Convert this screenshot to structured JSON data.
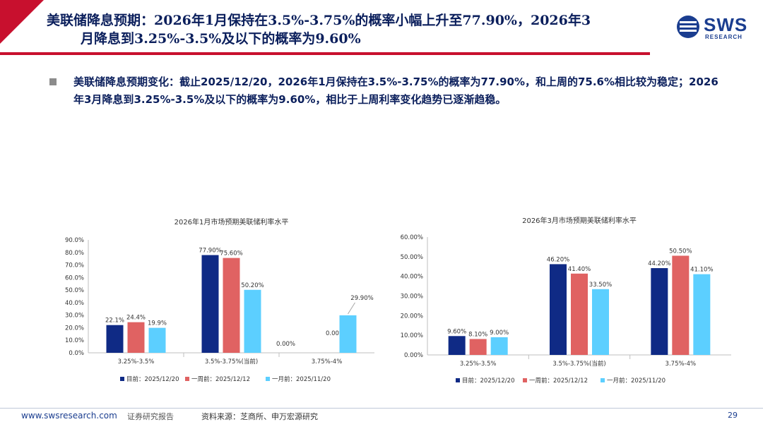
{
  "header": {
    "title_line1": "美联储降息预期：2026年1月保持在3.5%-3.75%的概率小幅上升至77.90%，2026年3",
    "title_line2": "月降息到3.25%-3.5%及以下的概率为9.60%"
  },
  "logo": {
    "name": "SWS",
    "sub": "RESEARCH"
  },
  "bullet": {
    "text": "美联储降息预期变化：截止2025/12/20，2026年1月保持在3.5%-3.75%的概率为77.90%，和上周的75.6%相比较为稳定；2026年3月降息到3.25%-3.5%及以下的概率为9.60%，相比于上周利率变化趋势已逐渐趋稳。"
  },
  "colors": {
    "current": "#0f2a85",
    "week": "#e06262",
    "month": "#5ccfff",
    "brand": "#1a3d8f",
    "accent": "#c8102e"
  },
  "chart_data": [
    {
      "type": "bar",
      "title": "2026年1月市场预期美联储利率水平",
      "categories": [
        "3.25%-3.5%",
        "3.5%-3.75%(当前)",
        "3.75%-4%"
      ],
      "series": [
        {
          "name": "目前：2025/12/20",
          "values": [
            22.1,
            77.9,
            0.0
          ],
          "labels": [
            "22.1%",
            "77.90%",
            "0.00%"
          ]
        },
        {
          "name": "一周前：2025/12/12",
          "values": [
            24.4,
            75.6,
            0.0
          ],
          "labels": [
            "24.4%",
            "75.60%",
            "0.00%"
          ]
        },
        {
          "name": "一月前：2025/11/20",
          "values": [
            19.9,
            50.2,
            29.9
          ],
          "labels": [
            "19.9%",
            "50.20%",
            "29.90%"
          ]
        }
      ],
      "ylim": [
        0,
        90
      ],
      "yticks": [
        "0.0%",
        "10.0%",
        "20.0%",
        "30.0%",
        "40.0%",
        "50.0%",
        "60.0%",
        "70.0%",
        "80.0%",
        "90.0%"
      ],
      "legend": "bottom"
    },
    {
      "type": "bar",
      "title": "2026年3月市场预期美联储利率水平",
      "categories": [
        "3.25%-3.5%",
        "3.5%-3.75%(当前)",
        "3.75%-4%"
      ],
      "series": [
        {
          "name": "目前：2025/12/20",
          "values": [
            9.6,
            46.2,
            44.2
          ],
          "labels": [
            "9.60%",
            "46.20%",
            "44.20%"
          ]
        },
        {
          "name": "一周前：2025/12/12",
          "values": [
            8.1,
            41.4,
            50.5
          ],
          "labels": [
            "8.10%",
            "41.40%",
            "50.50%"
          ]
        },
        {
          "name": "一月前：2025/11/20",
          "values": [
            9.0,
            33.5,
            41.1
          ],
          "labels": [
            "9.00%",
            "33.50%",
            "41.10%"
          ]
        }
      ],
      "ylim": [
        0,
        60
      ],
      "yticks": [
        "0.00%",
        "10.00%",
        "20.00%",
        "30.00%",
        "40.00%",
        "50.00%",
        "60.00%"
      ],
      "legend": "bottom"
    }
  ],
  "footer": {
    "site": "www.swsresearch.com",
    "report": "证券研究报告",
    "source": "资料来源：芝商所、申万宏源研究",
    "page": "29"
  }
}
